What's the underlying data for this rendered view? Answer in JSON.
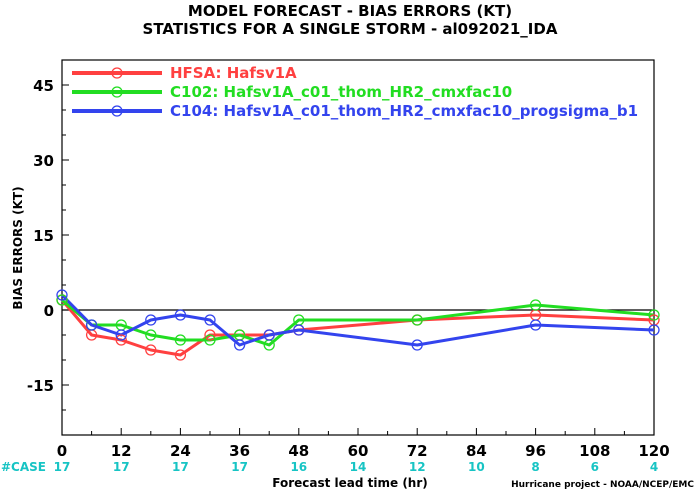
{
  "title_line1": "MODEL FORECAST - BIAS ERRORS (KT)",
  "title_line2": "STATISTICS FOR A SINGLE STORM - al092021_IDA",
  "credit": "Hurricane project - NOAA/NCEP/EMC",
  "colors": {
    "case": "#17c4c4",
    "zero_line": "#000000"
  },
  "chart_data": {
    "type": "line",
    "ylabel": "BIAS ERRORS (KT)",
    "xlabel": "Forecast lead time (hr)",
    "xlim": [
      0,
      120
    ],
    "ylim": [
      -25,
      50
    ],
    "x_ticks": [
      0,
      12,
      24,
      36,
      48,
      60,
      72,
      84,
      96,
      108,
      120
    ],
    "x_tick_labels": [
      "0",
      "12",
      "24",
      "36",
      "48",
      "60",
      "72",
      "84",
      "96",
      "108",
      "120"
    ],
    "y_ticks": [
      -15,
      0,
      15,
      30,
      45
    ],
    "y_tick_labels": [
      "-15",
      "0",
      "15",
      "30",
      "45"
    ],
    "case_label": "#CASE",
    "case_counts": [
      "17",
      "17",
      "17",
      "17",
      "16",
      "14",
      "12",
      "10",
      "8",
      "6",
      "4"
    ],
    "legend_position": "top-left",
    "series": [
      {
        "name": "HFSA: Hafsv1A",
        "color": "#ff4040",
        "x": [
          0,
          6,
          12,
          18,
          24,
          30,
          36,
          42,
          48,
          72,
          96,
          120
        ],
        "y": [
          2,
          -5,
          -6,
          -8,
          -9,
          -5,
          -5,
          -5,
          -4,
          -2,
          -1,
          -2
        ]
      },
      {
        "name": "C102: Hafsv1A_c01_thom_HR2_cmxfac10",
        "color": "#22dd22",
        "x": [
          0,
          6,
          12,
          18,
          24,
          30,
          36,
          42,
          48,
          72,
          96,
          120
        ],
        "y": [
          2,
          -3,
          -3,
          -5,
          -6,
          -6,
          -5,
          -7,
          -2,
          -2,
          1,
          -1
        ]
      },
      {
        "name": "C104: Hafsv1A_c01_thom_HR2_cmxfac10_progsigma_b1",
        "color": "#3344ee",
        "x": [
          0,
          6,
          12,
          18,
          24,
          30,
          36,
          42,
          48,
          72,
          96,
          120
        ],
        "y": [
          3,
          -3,
          -5,
          -2,
          -1,
          -2,
          -7,
          -5,
          -4,
          -7,
          -3,
          -4
        ]
      }
    ]
  }
}
